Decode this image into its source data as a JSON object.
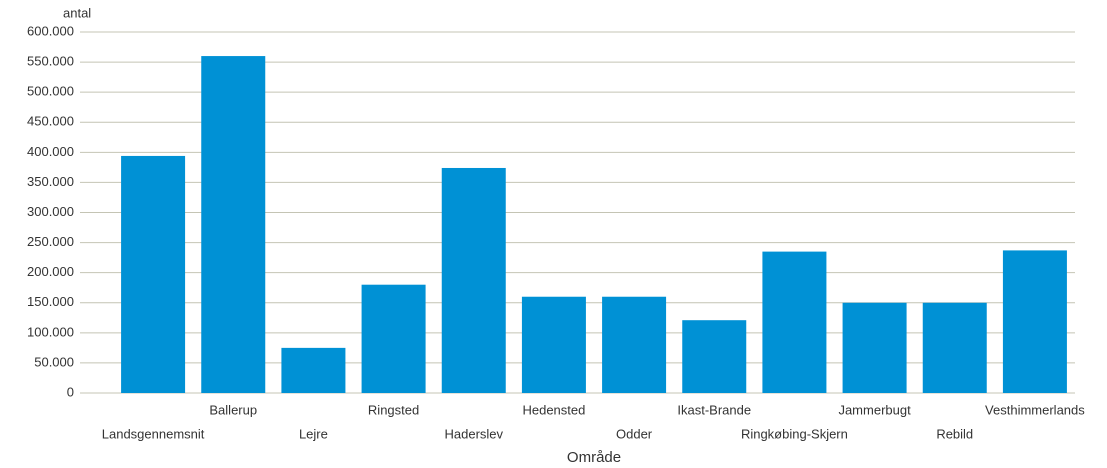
{
  "chart_data": {
    "type": "bar",
    "y_axis_label": "antal",
    "x_axis_label": "Område",
    "categories": [
      "Landsgennemsnit",
      "Ballerup",
      "Lejre",
      "Ringsted",
      "Haderslev",
      "Hedensted",
      "Odder",
      "Ikast-Brande",
      "Ringkøbing-Skjern",
      "Jammerbugt",
      "Rebild",
      "Vesthimmerlands"
    ],
    "values": [
      394000,
      560000,
      75000,
      180000,
      374000,
      160000,
      160000,
      121000,
      235000,
      150000,
      150000,
      237000
    ],
    "color": "#0091d5",
    "ylim": [
      0,
      600000
    ],
    "yticks": [
      0,
      {
        "value": 50000,
        "label": "50.000"
      },
      {
        "value": 100000,
        "label": "100.000"
      },
      {
        "value": 150000,
        "label": "150.000"
      },
      {
        "value": 200000,
        "label": "200.000"
      },
      {
        "value": 250000,
        "label": "250.000"
      },
      {
        "value": 300000,
        "label": "300.000"
      },
      {
        "value": 350000,
        "label": "350.000"
      },
      {
        "value": 400000,
        "label": "400.000"
      },
      {
        "value": 450000,
        "label": "450.000"
      },
      {
        "value": 500000,
        "label": "500.000"
      },
      {
        "value": 550000,
        "label": "550.000"
      },
      {
        "value": 600000,
        "label": "600.000"
      }
    ],
    "grid": true
  }
}
